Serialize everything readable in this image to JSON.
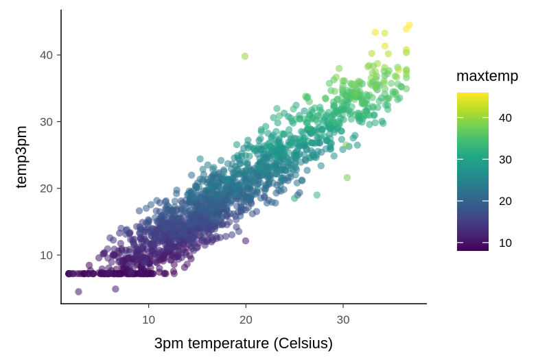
{
  "chart_data": {
    "type": "scatter",
    "xlabel": "3pm temperature (Celsius)",
    "ylabel": "temp3pm",
    "xlim": [
      1.0,
      38.6
    ],
    "ylim": [
      2.7,
      46.8
    ],
    "x_ticks": [
      10,
      20,
      30
    ],
    "y_ticks": [
      10,
      20,
      30,
      40
    ],
    "x_tick_labels": [
      "10",
      "20",
      "30"
    ],
    "y_tick_labels": [
      "10",
      "20",
      "30",
      "40"
    ],
    "grid": false,
    "color_scale": "viridis",
    "point_alpha": 0.55,
    "legend": {
      "title": "maxtemp",
      "placement": "right",
      "min": 8,
      "max": 46,
      "ticks": [
        10,
        20,
        30,
        40
      ],
      "tick_labels": [
        "10",
        "20",
        "30",
        "40"
      ]
    },
    "point_count_note": "dense cloud, ~2000 points following temp3pm ≈ x",
    "outliers": [
      {
        "x": 2.8,
        "y": 4.5,
        "maxtemp": 10
      },
      {
        "x": 6.6,
        "y": 4.9,
        "maxtemp": 11
      },
      {
        "x": 19.9,
        "y": 39.8,
        "maxtemp": 40
      },
      {
        "x": 30.4,
        "y": 21.6,
        "maxtemp": 38
      },
      {
        "x": 30.3,
        "y": 26.5,
        "maxtemp": 38
      },
      {
        "x": 27.3,
        "y": 19.0,
        "maxtemp": 33
      },
      {
        "x": 25.0,
        "y": 18.5,
        "maxtemp": 31
      },
      {
        "x": 36.8,
        "y": 44.5,
        "maxtemp": 46
      },
      {
        "x": 36.5,
        "y": 43.9,
        "maxtemp": 46
      },
      {
        "x": 33.3,
        "y": 43.4,
        "maxtemp": 45
      }
    ]
  }
}
